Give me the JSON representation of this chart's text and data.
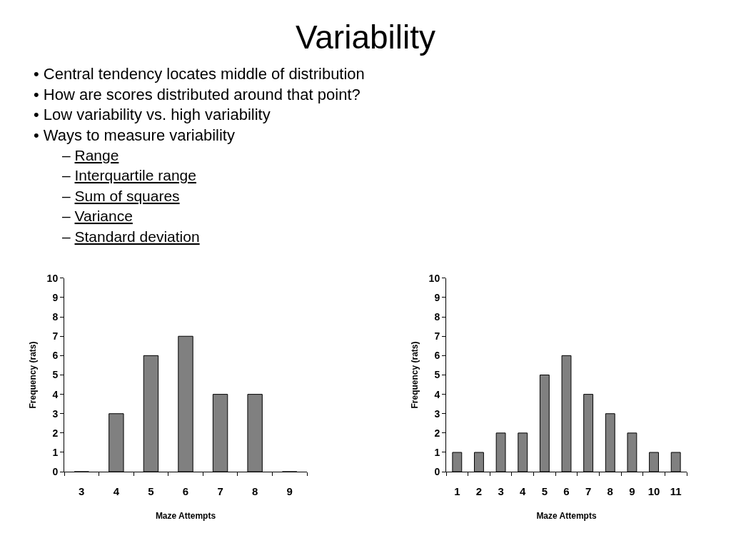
{
  "chart_data": [
    {
      "type": "other",
      "title": "Variability",
      "annotations": [
        "• Central tendency locates middle of distribution",
        "• How are scores distributed around that point?",
        "• Low variability vs. high variability",
        "• Ways to measure variability",
        "– Range",
        "– Interquartile range",
        "– Sum of squares",
        "– Variance",
        "– Standard deviation"
      ]
    },
    {
      "type": "bar",
      "categories": [
        "3",
        "4",
        "5",
        "6",
        "7",
        "8",
        "9"
      ],
      "values": [
        0,
        3,
        6,
        7,
        4,
        4,
        0
      ],
      "color": "#808080",
      "xlabel": "Maze Attempts",
      "ylabel": "Frequency (rats)",
      "ylim": [
        0,
        10
      ],
      "yticks": [
        0,
        1,
        2,
        3,
        4,
        5,
        6,
        7,
        8,
        9,
        10
      ]
    },
    {
      "type": "bar",
      "categories": [
        "1",
        "2",
        "3",
        "4",
        "5",
        "6",
        "7",
        "8",
        "9",
        "10",
        "11"
      ],
      "values": [
        1,
        1,
        2,
        2,
        5,
        6,
        4,
        3,
        2,
        1,
        1
      ],
      "color": "#808080",
      "xlabel": "Maze Attempts",
      "ylabel": "Frequency (rats)",
      "ylim": [
        0,
        10
      ],
      "yticks": [
        0,
        1,
        2,
        3,
        4,
        5,
        6,
        7,
        8,
        9,
        10
      ]
    }
  ]
}
